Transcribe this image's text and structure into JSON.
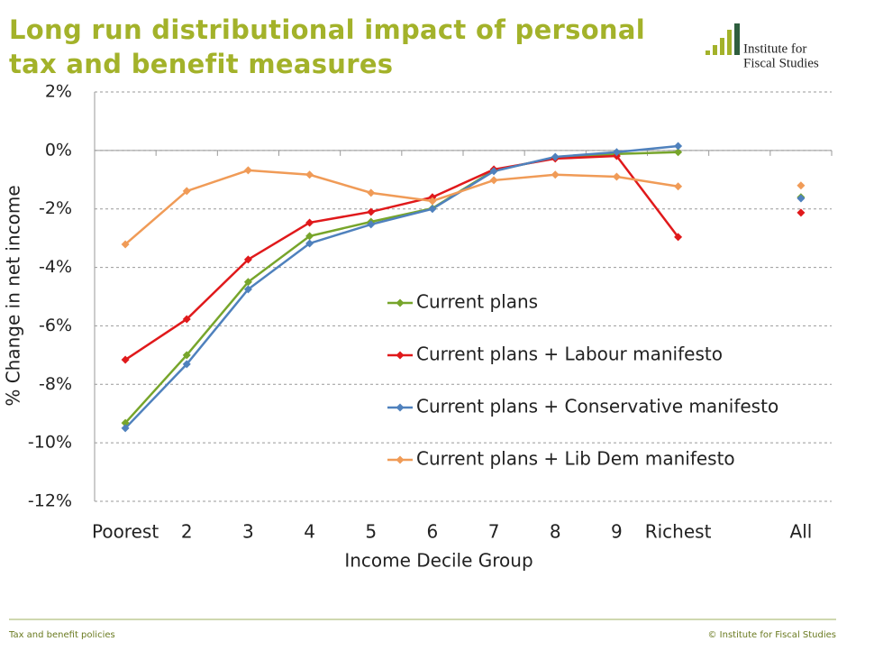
{
  "chart_data": {
    "type": "line",
    "title": "Long run distributional impact of personal tax and benefit measures",
    "logo": [
      "Institute for",
      "Fiscal Studies"
    ],
    "y_label": "% Change in net income",
    "x_label": "Income Decile Group",
    "categories": [
      "Poorest",
      "2",
      "3",
      "4",
      "5",
      "6",
      "7",
      "8",
      "9",
      "Richest",
      null,
      "All"
    ],
    "series": [
      {
        "name": "Current plans",
        "color": "#77a52b",
        "values": [
          -9.32,
          -7.0,
          -4.5,
          -2.93,
          -2.44,
          -1.98,
          -0.68,
          -0.25,
          -0.12,
          -0.06,
          null,
          -1.6
        ]
      },
      {
        "name": "Current plans + Labour manifesto",
        "color": "#e0191b",
        "values": [
          -7.16,
          -5.77,
          -3.73,
          -2.47,
          -2.1,
          -1.6,
          -0.65,
          -0.28,
          -0.19,
          -2.96,
          null,
          -2.13
        ]
      },
      {
        "name": "Current plans + Conservative manifesto",
        "color": "#4f81bd",
        "values": [
          -9.5,
          -7.31,
          -4.75,
          -3.18,
          -2.53,
          -2.0,
          -0.71,
          -0.22,
          -0.06,
          0.15,
          null,
          -1.64
        ]
      },
      {
        "name": "Current plans + Lib Dem manifesto",
        "color": "#f09b57",
        "values": [
          -3.21,
          -1.39,
          -0.68,
          -0.83,
          -1.45,
          -1.73,
          -1.02,
          -0.83,
          -0.9,
          -1.23,
          null,
          -1.2
        ]
      }
    ],
    "ylim": [
      -12,
      2
    ],
    "yticks": [
      {
        "value": -12,
        "label": "-12%"
      },
      {
        "value": -10,
        "label": "-10%"
      },
      {
        "value": -8,
        "label": "-8%"
      },
      {
        "value": -6,
        "label": "-6%"
      },
      {
        "value": -4,
        "label": "-4%"
      },
      {
        "value": -2,
        "label": "-2%"
      },
      {
        "value": 0,
        "label": "0%"
      },
      {
        "value": 2,
        "label": "2%"
      }
    ],
    "grid": true,
    "footer_left": "Tax and benefit policies",
    "footer_right": "© Institute for Fiscal Studies"
  }
}
